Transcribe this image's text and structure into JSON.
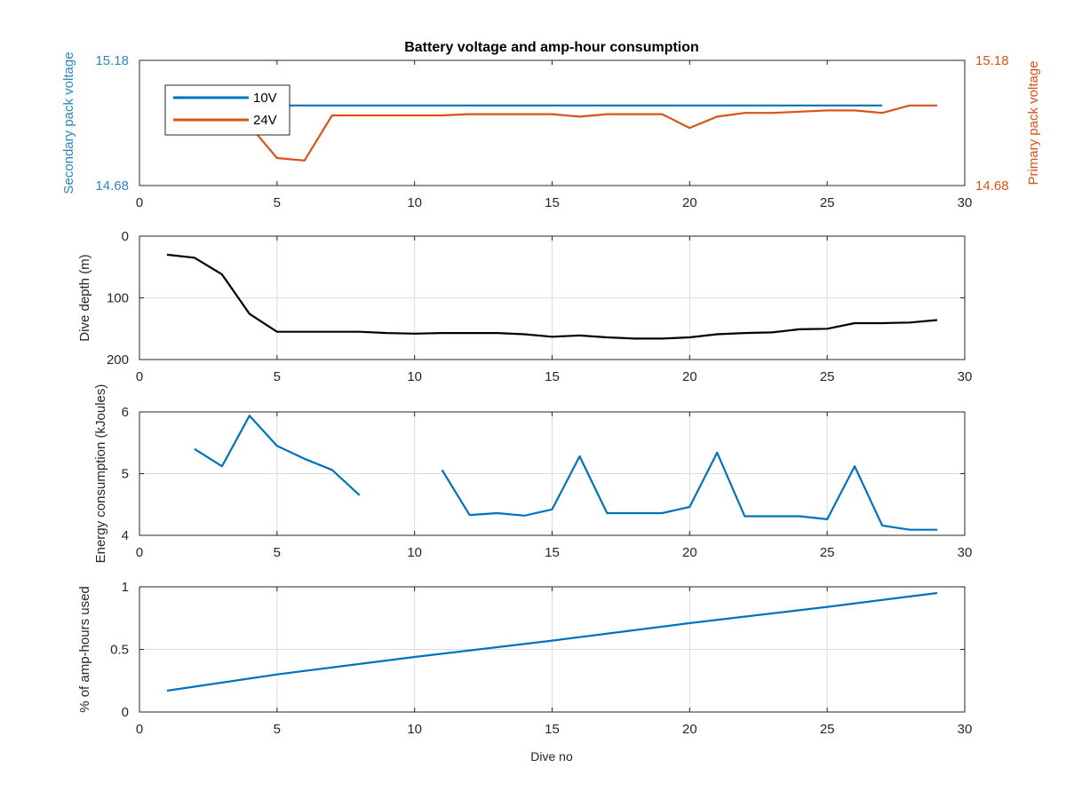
{
  "figure": {
    "title": "Battery voltage and amp-hour consumption",
    "xlabel": "Dive no"
  },
  "colors": {
    "blue": "#0072bd",
    "orange": "#d95319",
    "black": "#000000",
    "grid": "#dcdcdc",
    "left_axis_label": "#2e86c1",
    "right_axis_label": "#d95319"
  },
  "chart_data": [
    {
      "type": "line",
      "title": "Battery voltage and amp-hour consumption",
      "xlabel": "",
      "ylabel": "Secondary pack voltage",
      "ylabel_right": "Primary pack voltage",
      "xlim": [
        0,
        30
      ],
      "ylim": [
        14.68,
        15.18
      ],
      "ylim_right": [
        14.68,
        15.18
      ],
      "xticks": [
        0,
        5,
        10,
        15,
        20,
        25,
        30
      ],
      "yticks": [
        "14.68",
        "15.18"
      ],
      "yticks_right": [
        "14.68",
        "15.18"
      ],
      "grid": false,
      "legend": "top-left",
      "series": [
        {
          "name": "10V",
          "color": "#0072bd",
          "axis": "left",
          "x": [
            4,
            5,
            6,
            7,
            8,
            9,
            10,
            11,
            12,
            13,
            14,
            15,
            16,
            17,
            18,
            19,
            20,
            21,
            22,
            23,
            24,
            25,
            26,
            27
          ],
          "y": [
            15.0,
            15.0,
            15.0,
            15.0,
            15.0,
            15.0,
            15.0,
            15.0,
            15.0,
            15.0,
            15.0,
            15.0,
            15.0,
            15.0,
            15.0,
            15.0,
            15.0,
            15.0,
            15.0,
            15.0,
            15.0,
            15.0,
            15.0,
            15.0
          ]
        },
        {
          "name": "24V",
          "color": "#d95319",
          "axis": "right",
          "x": [
            4,
            5,
            6,
            7,
            8,
            9,
            10,
            11,
            12,
            13,
            14,
            15,
            16,
            17,
            18,
            19,
            20,
            21,
            22,
            23,
            24,
            25,
            26,
            27,
            28,
            29
          ],
          "y": [
            14.92,
            14.79,
            14.78,
            14.96,
            14.96,
            14.96,
            14.96,
            14.96,
            14.965,
            14.965,
            14.965,
            14.965,
            14.955,
            14.965,
            14.965,
            14.965,
            14.91,
            14.955,
            14.97,
            14.97,
            14.975,
            14.98,
            14.98,
            14.97,
            15.0,
            15.0
          ]
        }
      ]
    },
    {
      "type": "line",
      "xlabel": "",
      "ylabel": "Dive depth (m)",
      "xlim": [
        0,
        30
      ],
      "ylim": [
        0,
        200
      ],
      "y_reversed": true,
      "xticks": [
        0,
        5,
        10,
        15,
        20,
        25,
        30
      ],
      "yticks": [
        "0",
        "100",
        "200"
      ],
      "grid": true,
      "series": [
        {
          "color": "#000000",
          "x": [
            1,
            2,
            3,
            4,
            5,
            6,
            7,
            8,
            9,
            10,
            11,
            12,
            13,
            14,
            15,
            16,
            17,
            18,
            19,
            20,
            21,
            22,
            23,
            24,
            25,
            26,
            27,
            28,
            29
          ],
          "y": [
            30,
            35,
            62,
            126,
            155,
            155,
            155,
            155,
            157,
            158,
            157,
            157,
            157,
            159,
            163,
            161,
            164,
            166,
            166,
            164,
            159,
            157,
            156,
            151,
            150,
            141,
            141,
            140,
            136
          ]
        }
      ]
    },
    {
      "type": "line",
      "xlabel": "",
      "ylabel": "Energy consumption (kJoules)",
      "xlim": [
        0,
        30
      ],
      "ylim": [
        4,
        6
      ],
      "xticks": [
        0,
        5,
        10,
        15,
        20,
        25,
        30
      ],
      "yticks": [
        "4",
        "5",
        "6"
      ],
      "grid": true,
      "series": [
        {
          "color": "#0072bd",
          "x": [
            2,
            3,
            4,
            5,
            6,
            7,
            8,
            9,
            10,
            11,
            12,
            13,
            14,
            15,
            16,
            17,
            18,
            19,
            20,
            21,
            22,
            23,
            24,
            25,
            26,
            27,
            28,
            29
          ],
          "y": [
            5.4,
            5.12,
            5.94,
            5.45,
            5.24,
            5.06,
            4.65,
            null,
            null,
            5.06,
            4.33,
            4.36,
            4.32,
            4.42,
            5.28,
            4.36,
            4.36,
            4.36,
            4.46,
            5.34,
            4.31,
            4.31,
            4.31,
            4.26,
            5.12,
            4.16,
            4.09,
            4.09
          ]
        }
      ]
    },
    {
      "type": "line",
      "xlabel": "Dive no",
      "ylabel": "% of amp-hours used",
      "xlim": [
        0,
        30
      ],
      "ylim": [
        0,
        1
      ],
      "xticks": [
        0,
        5,
        10,
        15,
        20,
        25,
        30
      ],
      "yticks": [
        "0",
        "0.5",
        "1"
      ],
      "grid": true,
      "series": [
        {
          "color": "#0072bd",
          "x": [
            1,
            5,
            10,
            15,
            20,
            25,
            29
          ],
          "y": [
            0.17,
            0.3,
            0.44,
            0.57,
            0.71,
            0.84,
            0.95
          ]
        }
      ]
    }
  ]
}
